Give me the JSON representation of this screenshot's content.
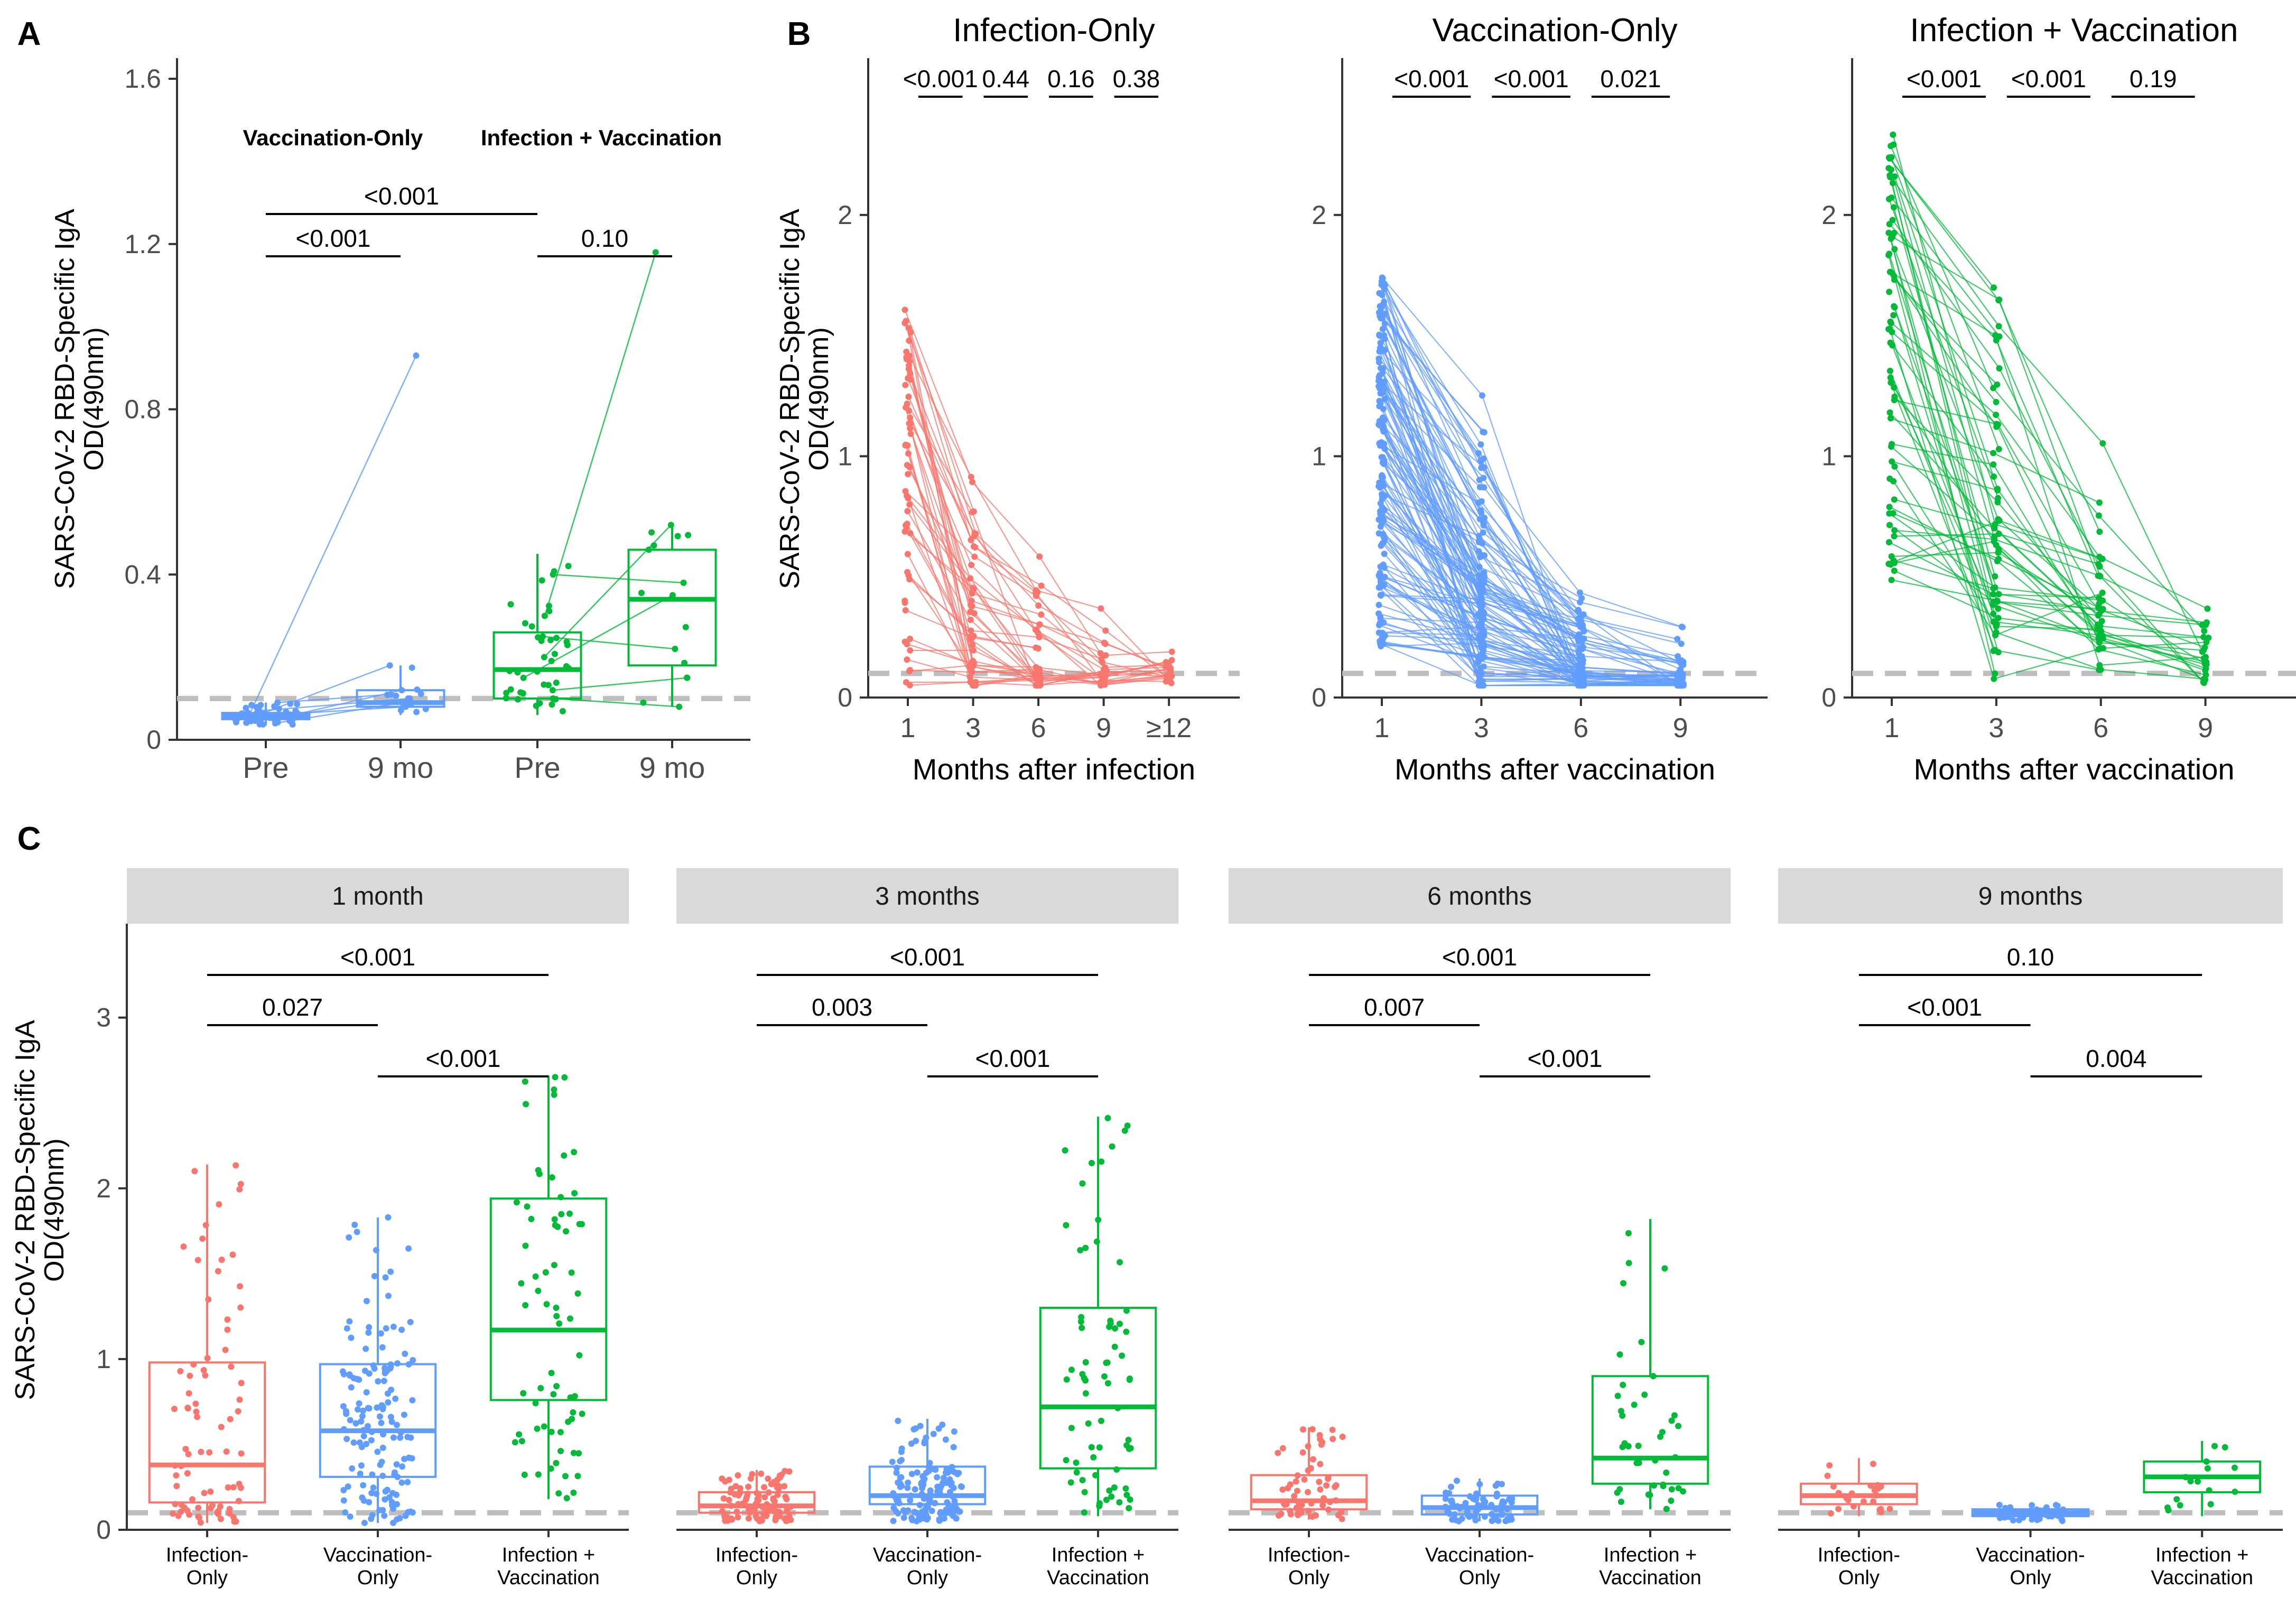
{
  "colors": {
    "infection": "#F8766D",
    "vaccination": "#619CFF",
    "both": "#00BA38",
    "axis": "#333333",
    "strip": "#D9D9D9",
    "dashed": "#BEBEBE"
  },
  "y_axis_label": [
    "SARS-CoV-2 RBD-Specific IgA",
    "OD(490nm)"
  ],
  "chart_data": [
    {
      "id": "A",
      "type": "box",
      "panel_letter": "A",
      "ylim": [
        0,
        1.65
      ],
      "yticks": [
        "0",
        "0.4",
        "0.8",
        "1.2",
        "1.6"
      ],
      "ytick_values": [
        0,
        0.4,
        0.8,
        1.2,
        1.6
      ],
      "categories": [
        "Pre",
        "9 mo",
        "Pre",
        "9 mo"
      ],
      "group_labels": [
        "Vaccination-Only",
        "Infection + Vaccination"
      ],
      "cutoff": 0.1,
      "boxes": [
        {
          "group": "vaccination",
          "q1": 0.05,
          "median": 0.058,
          "q3": 0.065,
          "lo": 0.035,
          "hi": 0.09
        },
        {
          "group": "vaccination",
          "q1": 0.08,
          "median": 0.09,
          "q3": 0.12,
          "lo": 0.06,
          "hi": 0.18
        },
        {
          "group": "both",
          "q1": 0.1,
          "median": 0.17,
          "q3": 0.26,
          "lo": 0.06,
          "hi": 0.45
        },
        {
          "group": "both",
          "q1": 0.18,
          "median": 0.34,
          "q3": 0.46,
          "lo": 0.08,
          "hi": 0.52
        }
      ],
      "pairs": [
        [
          0.05,
          0.93
        ],
        [
          0.06,
          0.18
        ],
        [
          0.05,
          0.12
        ],
        [
          0.07,
          0.1
        ],
        [
          0.04,
          0.09
        ],
        [
          0.06,
          0.08
        ],
        [
          0.09,
          0.11
        ],
        [
          0.05,
          0.1
        ],
        [
          0.3,
          1.18
        ],
        [
          0.2,
          0.52
        ],
        [
          0.4,
          0.38
        ],
        [
          0.15,
          0.35
        ],
        [
          0.1,
          0.08
        ],
        [
          0.25,
          0.22
        ],
        [
          0.12,
          0.15
        ]
      ],
      "pvalues": [
        {
          "label": "<0.001",
          "from": 0,
          "to": 1,
          "level": 0
        },
        {
          "label": "<0.001",
          "from": 0,
          "to": 2,
          "level": 1
        },
        {
          "label": "0.10",
          "from": 2,
          "to": 3,
          "level": 0
        }
      ]
    },
    {
      "id": "B1",
      "type": "paired-line",
      "panel_letter": "B",
      "title": "Infection-Only",
      "group": "infection",
      "xlabel": "Months after infection",
      "categories": [
        "1",
        "3",
        "6",
        "9",
        "≥12"
      ],
      "ylim": [
        0,
        2.65
      ],
      "yticks": [
        "0",
        "1",
        "2"
      ],
      "ytick_values": [
        0,
        1,
        2
      ],
      "cutoff": 0.1,
      "pvalues": [
        "<0.001",
        "0.44",
        "0.16",
        "0.38"
      ],
      "n_subjects": 60
    },
    {
      "id": "B2",
      "type": "paired-line",
      "title": "Vaccination-Only",
      "group": "vaccination",
      "xlabel": "Months after vaccination",
      "categories": [
        "1",
        "3",
        "6",
        "9"
      ],
      "ylim": [
        0,
        2.65
      ],
      "yticks": [
        "0",
        "1",
        "2"
      ],
      "ytick_values": [
        0,
        1,
        2
      ],
      "cutoff": 0.1,
      "pvalues": [
        "<0.001",
        "<0.001",
        "0.021"
      ],
      "n_subjects": 150
    },
    {
      "id": "B3",
      "type": "paired-line",
      "title": "Infection + Vaccination",
      "group": "both",
      "xlabel": "Months after vaccination",
      "categories": [
        "1",
        "3",
        "6",
        "9"
      ],
      "ylim": [
        0,
        2.65
      ],
      "yticks": [
        "0",
        "1",
        "2"
      ],
      "ytick_values": [
        0,
        1,
        2
      ],
      "cutoff": 0.1,
      "pvalues": [
        "<0.001",
        "<0.001",
        "0.19"
      ],
      "n_subjects": 70
    },
    {
      "id": "C",
      "type": "box",
      "panel_letter": "C",
      "ylim": [
        0,
        3.55
      ],
      "yticks": [
        "0",
        "1",
        "2",
        "3"
      ],
      "ytick_values": [
        0,
        1,
        2,
        3
      ],
      "cutoff": 0.1,
      "categories": [
        "Infection-\nOnly",
        "Vaccination-\nOnly",
        "Infection +\nVaccination"
      ],
      "facets": [
        {
          "title": "1 month",
          "pvalues": [
            "<0.001",
            "0.027",
            "<0.001"
          ],
          "boxes": [
            {
              "q1": 0.16,
              "median": 0.38,
              "q3": 0.98,
              "lo": 0.04,
              "hi": 2.14
            },
            {
              "q1": 0.31,
              "median": 0.58,
              "q3": 0.97,
              "lo": 0.04,
              "hi": 1.83
            },
            {
              "q1": 0.76,
              "median": 1.17,
              "q3": 1.94,
              "lo": 0.18,
              "hi": 2.66
            }
          ]
        },
        {
          "title": "3 months",
          "pvalues": [
            "<0.001",
            "0.003",
            "<0.001"
          ],
          "boxes": [
            {
              "q1": 0.1,
              "median": 0.14,
              "q3": 0.22,
              "lo": 0.05,
              "hi": 0.35
            },
            {
              "q1": 0.15,
              "median": 0.2,
              "q3": 0.37,
              "lo": 0.05,
              "hi": 0.65
            },
            {
              "q1": 0.36,
              "median": 0.72,
              "q3": 1.3,
              "lo": 0.08,
              "hi": 2.42
            }
          ]
        },
        {
          "title": "6 months",
          "pvalues": [
            "<0.001",
            "0.007",
            "<0.001"
          ],
          "boxes": [
            {
              "q1": 0.12,
              "median": 0.17,
              "q3": 0.32,
              "lo": 0.06,
              "hi": 0.6
            },
            {
              "q1": 0.09,
              "median": 0.13,
              "q3": 0.2,
              "lo": 0.05,
              "hi": 0.3
            },
            {
              "q1": 0.27,
              "median": 0.42,
              "q3": 0.9,
              "lo": 0.12,
              "hi": 1.82
            }
          ]
        },
        {
          "title": "9 months",
          "pvalues": [
            "0.10",
            "<0.001",
            "0.004"
          ],
          "boxes": [
            {
              "q1": 0.15,
              "median": 0.2,
              "q3": 0.27,
              "lo": 0.08,
              "hi": 0.42
            },
            {
              "q1": 0.08,
              "median": 0.1,
              "q3": 0.12,
              "lo": 0.05,
              "hi": 0.15
            },
            {
              "q1": 0.22,
              "median": 0.31,
              "q3": 0.4,
              "lo": 0.08,
              "hi": 0.52
            }
          ]
        }
      ]
    }
  ]
}
